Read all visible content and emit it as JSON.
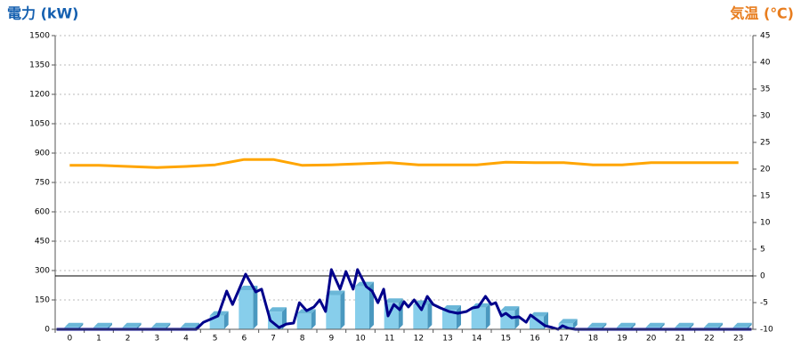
{
  "chart_data": {
    "type": "bar",
    "title_left": "電力 (kW)",
    "title_right": "気温 (℃)",
    "categories": [
      "0",
      "1",
      "2",
      "3",
      "4",
      "5",
      "6",
      "7",
      "8",
      "9",
      "10",
      "11",
      "12",
      "13",
      "14",
      "15",
      "16",
      "17",
      "18",
      "19",
      "20",
      "21",
      "22",
      "23"
    ],
    "ylim": [
      0,
      1500
    ],
    "yticks": [
      0,
      150,
      300,
      450,
      600,
      750,
      900,
      1050,
      1200,
      1350,
      1500
    ],
    "y2lim": [
      -10,
      45
    ],
    "y2ticks": [
      -10,
      -5,
      0,
      5,
      10,
      15,
      20,
      25,
      30,
      35,
      40,
      45
    ],
    "y2_reference_line": 0,
    "grid": true,
    "series": [
      {
        "type": "bar",
        "color": "#87ceeb",
        "values": [
          10,
          10,
          10,
          10,
          10,
          70,
          200,
          90,
          80,
          175,
          220,
          135,
          125,
          100,
          110,
          95,
          65,
          30,
          10,
          10,
          10,
          10,
          10,
          10
        ]
      },
      {
        "type": "line",
        "color": "#00008b",
        "x": [
          -0.45,
          4.35,
          4.6,
          4.9,
          5.1,
          5.4,
          5.6,
          6.05,
          6.4,
          6.6,
          6.9,
          7.2,
          7.45,
          7.7,
          7.9,
          8.15,
          8.4,
          8.6,
          8.8,
          9.0,
          9.3,
          9.5,
          9.75,
          9.9,
          10.2,
          10.4,
          10.6,
          10.8,
          10.95,
          11.15,
          11.35,
          11.5,
          11.65,
          11.85,
          12.1,
          12.3,
          12.5,
          12.75,
          13.05,
          13.35,
          13.65,
          13.85,
          14.05,
          14.3,
          14.5,
          14.65,
          14.85,
          15.0,
          15.2,
          15.45,
          15.7,
          15.85,
          16.1,
          16.35,
          16.6,
          16.8,
          16.95,
          17.15,
          17.4,
          23.45
        ],
        "values": [
          0,
          0,
          36,
          55,
          68,
          195,
          127,
          282,
          191,
          205,
          45,
          9,
          27,
          32,
          136,
          95,
          114,
          150,
          91,
          305,
          205,
          295,
          205,
          305,
          218,
          195,
          136,
          205,
          68,
          127,
          100,
          141,
          114,
          150,
          100,
          168,
          127,
          109,
          91,
          82,
          91,
          109,
          114,
          168,
          127,
          136,
          68,
          82,
          59,
          64,
          36,
          73,
          45,
          18,
          9,
          0,
          18,
          5,
          0,
          0
        ]
      },
      {
        "type": "line",
        "color": "#ffa500",
        "axis": "y2",
        "values": [
          20.7,
          20.7,
          20.5,
          20.3,
          20.5,
          20.8,
          21.8,
          21.8,
          20.7,
          20.8,
          21.0,
          21.2,
          20.8,
          20.8,
          20.8,
          21.3,
          21.2,
          21.2,
          20.8,
          20.8,
          21.2,
          21.2,
          21.2,
          21.2
        ]
      }
    ]
  }
}
